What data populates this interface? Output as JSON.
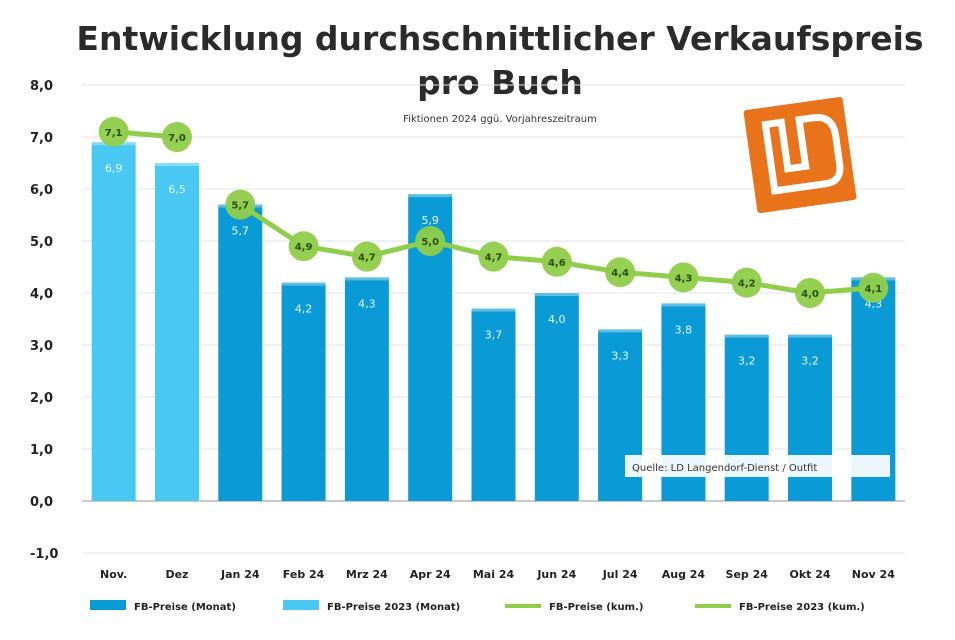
{
  "chart_data": {
    "type": "bar",
    "title": "Entwicklung durchschnittlicher Verkaufspreis pro Buch",
    "title_lines": [
      "Entwicklung durchschnittlicher Verkaufspreis",
      "pro Buch"
    ],
    "subtitle": "Fiktionen 2024 ggü. Vorjahreszeitraum",
    "source_note": "Quelle: LD Langendorf-Dienst / Outfit",
    "categories": [
      "Nov.",
      "Dez",
      "Jan 24",
      "Feb 24",
      "Mrz 24",
      "Apr 24",
      "Mai 24",
      "Jun 24",
      "Jul 24",
      "Aug 24",
      "Sep 24",
      "Okt 24",
      "Nov 24"
    ],
    "ylim": [
      -1.0,
      8.0
    ],
    "yticks": [
      "8,0",
      "7,0",
      "6,0",
      "5,0",
      "4,0",
      "3,0",
      "2,0",
      "1,0",
      "0,0",
      "-1,0"
    ],
    "grid": true,
    "legend_position": "bottom",
    "series": [
      {
        "name": "FB-Preise (Monat)",
        "kind": "bar",
        "color": "#0a9ad6",
        "values": [
          null,
          null,
          5.7,
          4.2,
          4.3,
          5.9,
          3.7,
          4.0,
          3.3,
          3.8,
          3.2,
          3.2,
          4.3
        ],
        "labels": [
          "",
          "",
          "5,7",
          "4,2",
          "4,3",
          "5,9",
          "3,7",
          "4,0",
          "3,3",
          "3,8",
          "3,2",
          "3,2",
          "4,3"
        ]
      },
      {
        "name": "FB-Preise 2023 (Monat)",
        "kind": "bar",
        "color": "#48c8f2",
        "values": [
          6.9,
          6.5,
          null,
          null,
          null,
          null,
          null,
          null,
          null,
          null,
          null,
          null,
          null
        ],
        "labels": [
          "6,9",
          "6,5",
          "",
          "",
          "",
          "",
          "",
          "",
          "",
          "",
          "",
          "",
          ""
        ]
      },
      {
        "name": "FB-Preise (kum.)",
        "kind": "line",
        "color": "#8fce4a",
        "values": [
          null,
          null,
          5.7,
          4.9,
          4.7,
          5.0,
          4.7,
          4.6,
          4.4,
          4.3,
          4.2,
          4.0,
          4.1
        ],
        "labels": [
          "",
          "",
          "5,7",
          "4,9",
          "4,7",
          "5,0",
          "4,7",
          "4,6",
          "4,4",
          "4,3",
          "4,2",
          "4,0",
          "4,1"
        ]
      },
      {
        "name": "FB-Preise 2023 (kum.)",
        "kind": "line",
        "color": "#8fce4a",
        "values": [
          7.1,
          7.0,
          null,
          null,
          null,
          null,
          null,
          null,
          null,
          null,
          null,
          null,
          null
        ],
        "labels": [
          "7,1",
          "7,0",
          "",
          "",
          "",
          "",
          "",
          "",
          "",
          "",
          "",
          "",
          ""
        ]
      }
    ]
  },
  "colors": {
    "title": "#2b2b2b",
    "axis_text": "#222222",
    "grid": "#e3e3e3",
    "zero_line": "#c9c9c9",
    "logo": "#e8731a",
    "line": "#8fce4a",
    "bar_dark": "#0a9ad6",
    "bar_light": "#48c8f2"
  },
  "logo": {
    "name": "ld-logo",
    "text": "LD"
  }
}
